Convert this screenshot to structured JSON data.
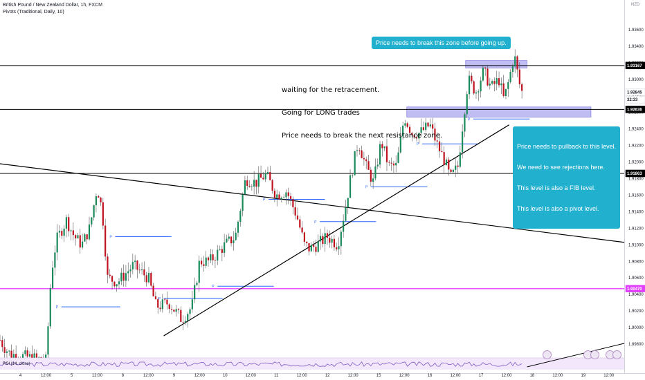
{
  "header": {
    "title": "British Pound / New Zealand Dollar, 1h, FXCM",
    "indicator": "Pivots (Traditional, Daily, 10)",
    "currency": "NZD"
  },
  "notes": {
    "main": [
      "waiting for the retracement.",
      "Going for LONG trades",
      "Price needs to break the next resistance zone."
    ],
    "callout_top": "Price needs to break this zone before going up.",
    "callout_bottom": [
      "Price needs to pullback to this level.",
      "We need to see rejections here.",
      "This level is also a FIB level.",
      "This level is also a pivot level."
    ]
  },
  "rsi_label": "RSI (14, close)",
  "chart_data": {
    "type": "candlestick",
    "y_axis": {
      "range": [
        1.8965,
        1.9375
      ],
      "ticks": [
        1.898,
        1.9,
        1.902,
        1.904,
        1.906,
        1.908,
        1.91,
        1.912,
        1.914,
        1.916,
        1.918,
        1.92,
        1.922,
        1.924,
        1.926,
        1.928,
        1.93,
        1.932,
        1.934,
        1.936
      ],
      "tick_labels": [
        "1.89800",
        "1.90000",
        "1.90200",
        "1.90400",
        "1.90600",
        "1.90800",
        "1.91000",
        "1.91200",
        "1.91400",
        "1.91600",
        "1.91800",
        "1.92000",
        "1.92200",
        "1.92400",
        "1.92600",
        "1.92800",
        "1.93000",
        "1.93200",
        "1.93400",
        "1.93600"
      ],
      "badges": [
        {
          "label": "1.93167",
          "value": 1.93167,
          "style": "dark"
        },
        {
          "label": "1.92845",
          "value": 1.92845,
          "style": "light"
        },
        {
          "label": "32:33",
          "value": 1.92755,
          "style": "light"
        },
        {
          "label": "1.92636",
          "value": 1.92636,
          "style": "dark"
        },
        {
          "label": "1.91863",
          "value": 1.91863,
          "style": "dark"
        },
        {
          "label": "1.90470",
          "value": 1.9047,
          "style": "pink"
        }
      ]
    },
    "x_axis": {
      "range": [
        0,
        12.2
      ],
      "ticks": [
        {
          "t": 0.4,
          "label": "4"
        },
        {
          "t": 0.9,
          "label": "12:00"
        },
        {
          "t": 1.4,
          "label": "5"
        },
        {
          "t": 1.9,
          "label": "12:00"
        },
        {
          "t": 2.4,
          "label": "8"
        },
        {
          "t": 2.9,
          "label": "12:00"
        },
        {
          "t": 3.4,
          "label": "9"
        },
        {
          "t": 3.9,
          "label": "12:00"
        },
        {
          "t": 4.4,
          "label": "10"
        },
        {
          "t": 4.9,
          "label": "12:00"
        },
        {
          "t": 5.4,
          "label": "11"
        },
        {
          "t": 5.9,
          "label": "12:00"
        },
        {
          "t": 6.4,
          "label": "12"
        },
        {
          "t": 6.9,
          "label": "12:00"
        },
        {
          "t": 7.4,
          "label": "15"
        },
        {
          "t": 7.9,
          "label": "12:00"
        },
        {
          "t": 8.4,
          "label": "16"
        },
        {
          "t": 8.9,
          "label": "12:00"
        },
        {
          "t": 9.4,
          "label": "17"
        },
        {
          "t": 9.9,
          "label": "12:00"
        },
        {
          "t": 10.4,
          "label": "18"
        },
        {
          "t": 10.9,
          "label": "12:00"
        },
        {
          "t": 11.4,
          "label": "19"
        },
        {
          "t": 11.9,
          "label": "12:00"
        }
      ]
    },
    "price_path": [
      [
        0.0,
        1.8985
      ],
      [
        0.1,
        1.8975
      ],
      [
        0.2,
        1.8968
      ],
      [
        0.9,
        1.896
      ],
      [
        1.0,
        1.9065
      ],
      [
        1.1,
        1.9105
      ],
      [
        1.3,
        1.913
      ],
      [
        1.45,
        1.911
      ],
      [
        1.6,
        1.91
      ],
      [
        1.75,
        1.912
      ],
      [
        1.9,
        1.917
      ],
      [
        2.0,
        1.914
      ],
      [
        2.1,
        1.906
      ],
      [
        2.3,
        1.9055
      ],
      [
        2.6,
        1.9075
      ],
      [
        2.9,
        1.906
      ],
      [
        3.05,
        1.9025
      ],
      [
        3.3,
        1.903
      ],
      [
        3.55,
        1.901
      ],
      [
        3.75,
        1.9025
      ],
      [
        3.9,
        1.908
      ],
      [
        4.1,
        1.908
      ],
      [
        4.4,
        1.91
      ],
      [
        4.6,
        1.911
      ],
      [
        4.8,
        1.918
      ],
      [
        5.0,
        1.9175
      ],
      [
        5.2,
        1.9185
      ],
      [
        5.4,
        1.916
      ],
      [
        5.6,
        1.9165
      ],
      [
        5.8,
        1.9135
      ],
      [
        5.95,
        1.91
      ],
      [
        6.05,
        1.9095
      ],
      [
        6.2,
        1.91
      ],
      [
        6.4,
        1.911
      ],
      [
        6.6,
        1.91
      ],
      [
        6.75,
        1.9145
      ],
      [
        6.85,
        1.918
      ],
      [
        7.0,
        1.9225
      ],
      [
        7.15,
        1.9195
      ],
      [
        7.3,
        1.9175
      ],
      [
        7.45,
        1.9225
      ],
      [
        7.6,
        1.9195
      ],
      [
        7.75,
        1.9195
      ],
      [
        7.9,
        1.9255
      ],
      [
        8.05,
        1.9235
      ],
      [
        8.2,
        1.9235
      ],
      [
        8.4,
        1.9245
      ],
      [
        8.55,
        1.922
      ],
      [
        8.7,
        1.92
      ],
      [
        8.8,
        1.918
      ],
      [
        8.95,
        1.9195
      ],
      [
        9.05,
        1.925
      ],
      [
        9.15,
        1.93
      ],
      [
        9.3,
        1.9285
      ],
      [
        9.45,
        1.931
      ],
      [
        9.6,
        1.929
      ],
      [
        9.75,
        1.93
      ],
      [
        9.85,
        1.9275
      ],
      [
        9.95,
        1.93
      ],
      [
        10.05,
        1.933
      ],
      [
        10.15,
        1.9295
      ],
      [
        10.2,
        1.9285
      ]
    ],
    "horizontal_lines": [
      {
        "value": 1.93167,
        "color": "#000000"
      },
      {
        "value": 1.92636,
        "color": "#000000"
      },
      {
        "value": 1.91863,
        "color": "#000000"
      },
      {
        "value": 1.9047,
        "color": "#e040fb"
      }
    ],
    "trendlines": [
      {
        "from": [
          0.0,
          1.9198
        ],
        "to": [
          12.2,
          1.9103
        ]
      },
      {
        "from": [
          3.2,
          1.899
        ],
        "to": [
          9.95,
          1.9245
        ]
      }
    ],
    "zones": [
      {
        "x": [
          9.1,
          10.3
        ],
        "y": [
          1.93137,
          1.93227
        ],
        "color": "#8b87e8"
      },
      {
        "x": [
          7.95,
          11.55
        ],
        "y": [
          1.92543,
          1.92666
        ],
        "color": "#8b87e8"
      }
    ],
    "pivot_markers": [
      {
        "x": [
          1.2,
          2.35
        ],
        "value": 1.9025
      },
      {
        "x": [
          2.25,
          3.35
        ],
        "value": 1.911
      },
      {
        "x": [
          3.2,
          4.35
        ],
        "value": 1.9035
      },
      {
        "x": [
          4.25,
          5.35
        ],
        "value": 1.905
      },
      {
        "x": [
          5.25,
          6.35
        ],
        "value": 1.9155
      },
      {
        "x": [
          6.25,
          7.35
        ],
        "value": 1.9128
      },
      {
        "x": [
          7.25,
          8.35
        ],
        "value": 1.917
      },
      {
        "x": [
          8.25,
          9.35
        ],
        "value": 1.9222
      },
      {
        "x": [
          9.25,
          10.35
        ],
        "value": 1.9252
      }
    ],
    "pivot_marker_text": "P",
    "rsi": {
      "range": [
        20,
        80
      ],
      "line": 48
    }
  }
}
